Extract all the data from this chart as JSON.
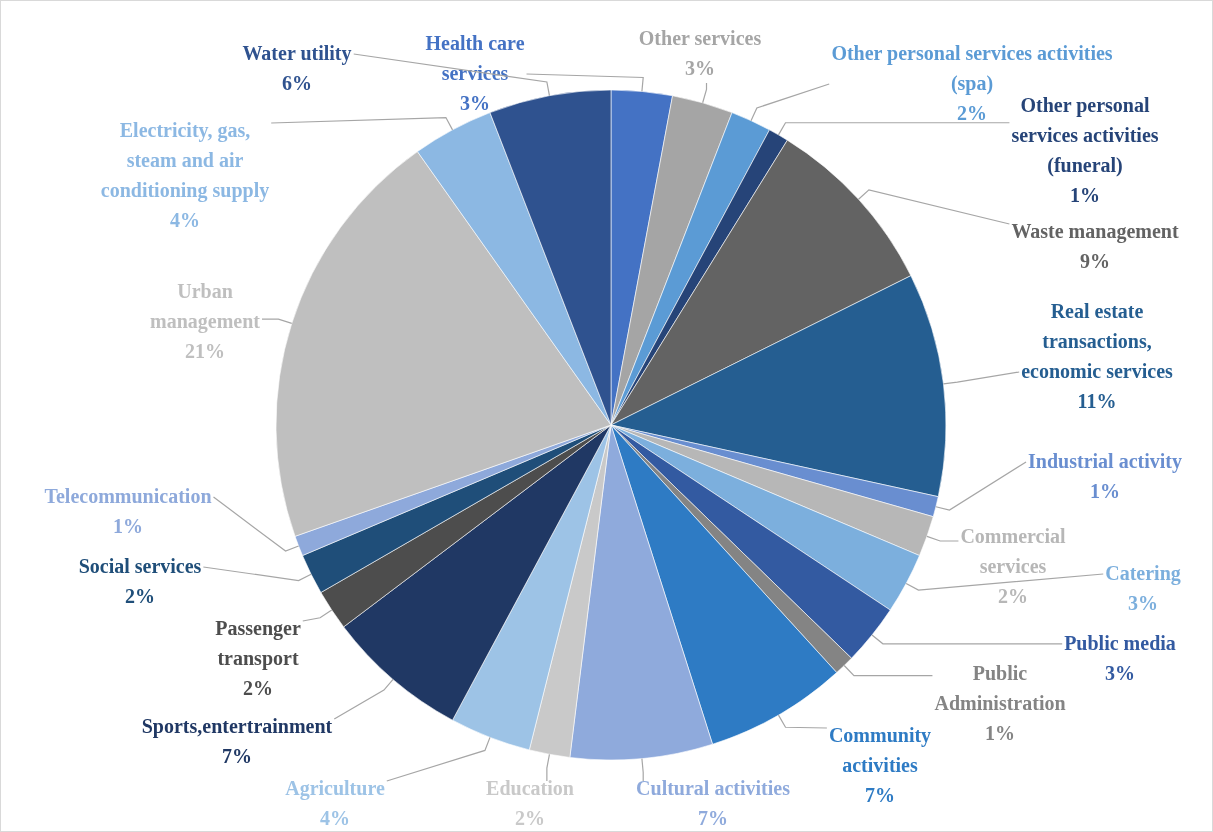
{
  "chart_data": {
    "type": "pie",
    "categories": [
      "Health care services",
      "Other services",
      "Other personal services activities (spa)",
      "Other personal services activities (funeral)",
      "Waste management",
      "Real estate transactions, economic services",
      "Industrial activity",
      "Commercial services",
      "Catering",
      "Public media",
      "Public Administration",
      "Community activities",
      "Cultural activities",
      "Education",
      "Agriculture",
      "Sports,entertrainment",
      "Passenger transport",
      "Social services",
      "Telecommunication",
      "Urban management",
      "Electricity, gas, steam and air conditioning supply",
      "Water utility"
    ],
    "values": [
      3,
      3,
      2,
      1,
      9,
      11,
      1,
      2,
      3,
      3,
      1,
      7,
      7,
      2,
      4,
      7,
      2,
      2,
      1,
      21,
      4,
      6
    ],
    "value_labels": [
      "3%",
      "3%",
      "2%",
      "1%",
      "9%",
      "11%",
      "1%",
      "2%",
      "3%",
      "3%",
      "1%",
      "7%",
      "7%",
      "2%",
      "4%",
      "7%",
      "2%",
      "2%",
      "1%",
      "21%",
      "4%",
      "6%"
    ],
    "colors": [
      "#4472c4",
      "#a5a5a5",
      "#5b9bd5",
      "#264478",
      "#636363",
      "#255e91",
      "#698ed0",
      "#b7b7b7",
      "#7cafdd",
      "#335aa1",
      "#848484",
      "#2e7bc4",
      "#8faadc",
      "#c9c9c9",
      "#9dc3e6",
      "#203864",
      "#4d4d4d",
      "#1f4e79",
      "#8ea9db",
      "#bfbfbf",
      "#8cb8e3",
      "#2f528f"
    ]
  }
}
